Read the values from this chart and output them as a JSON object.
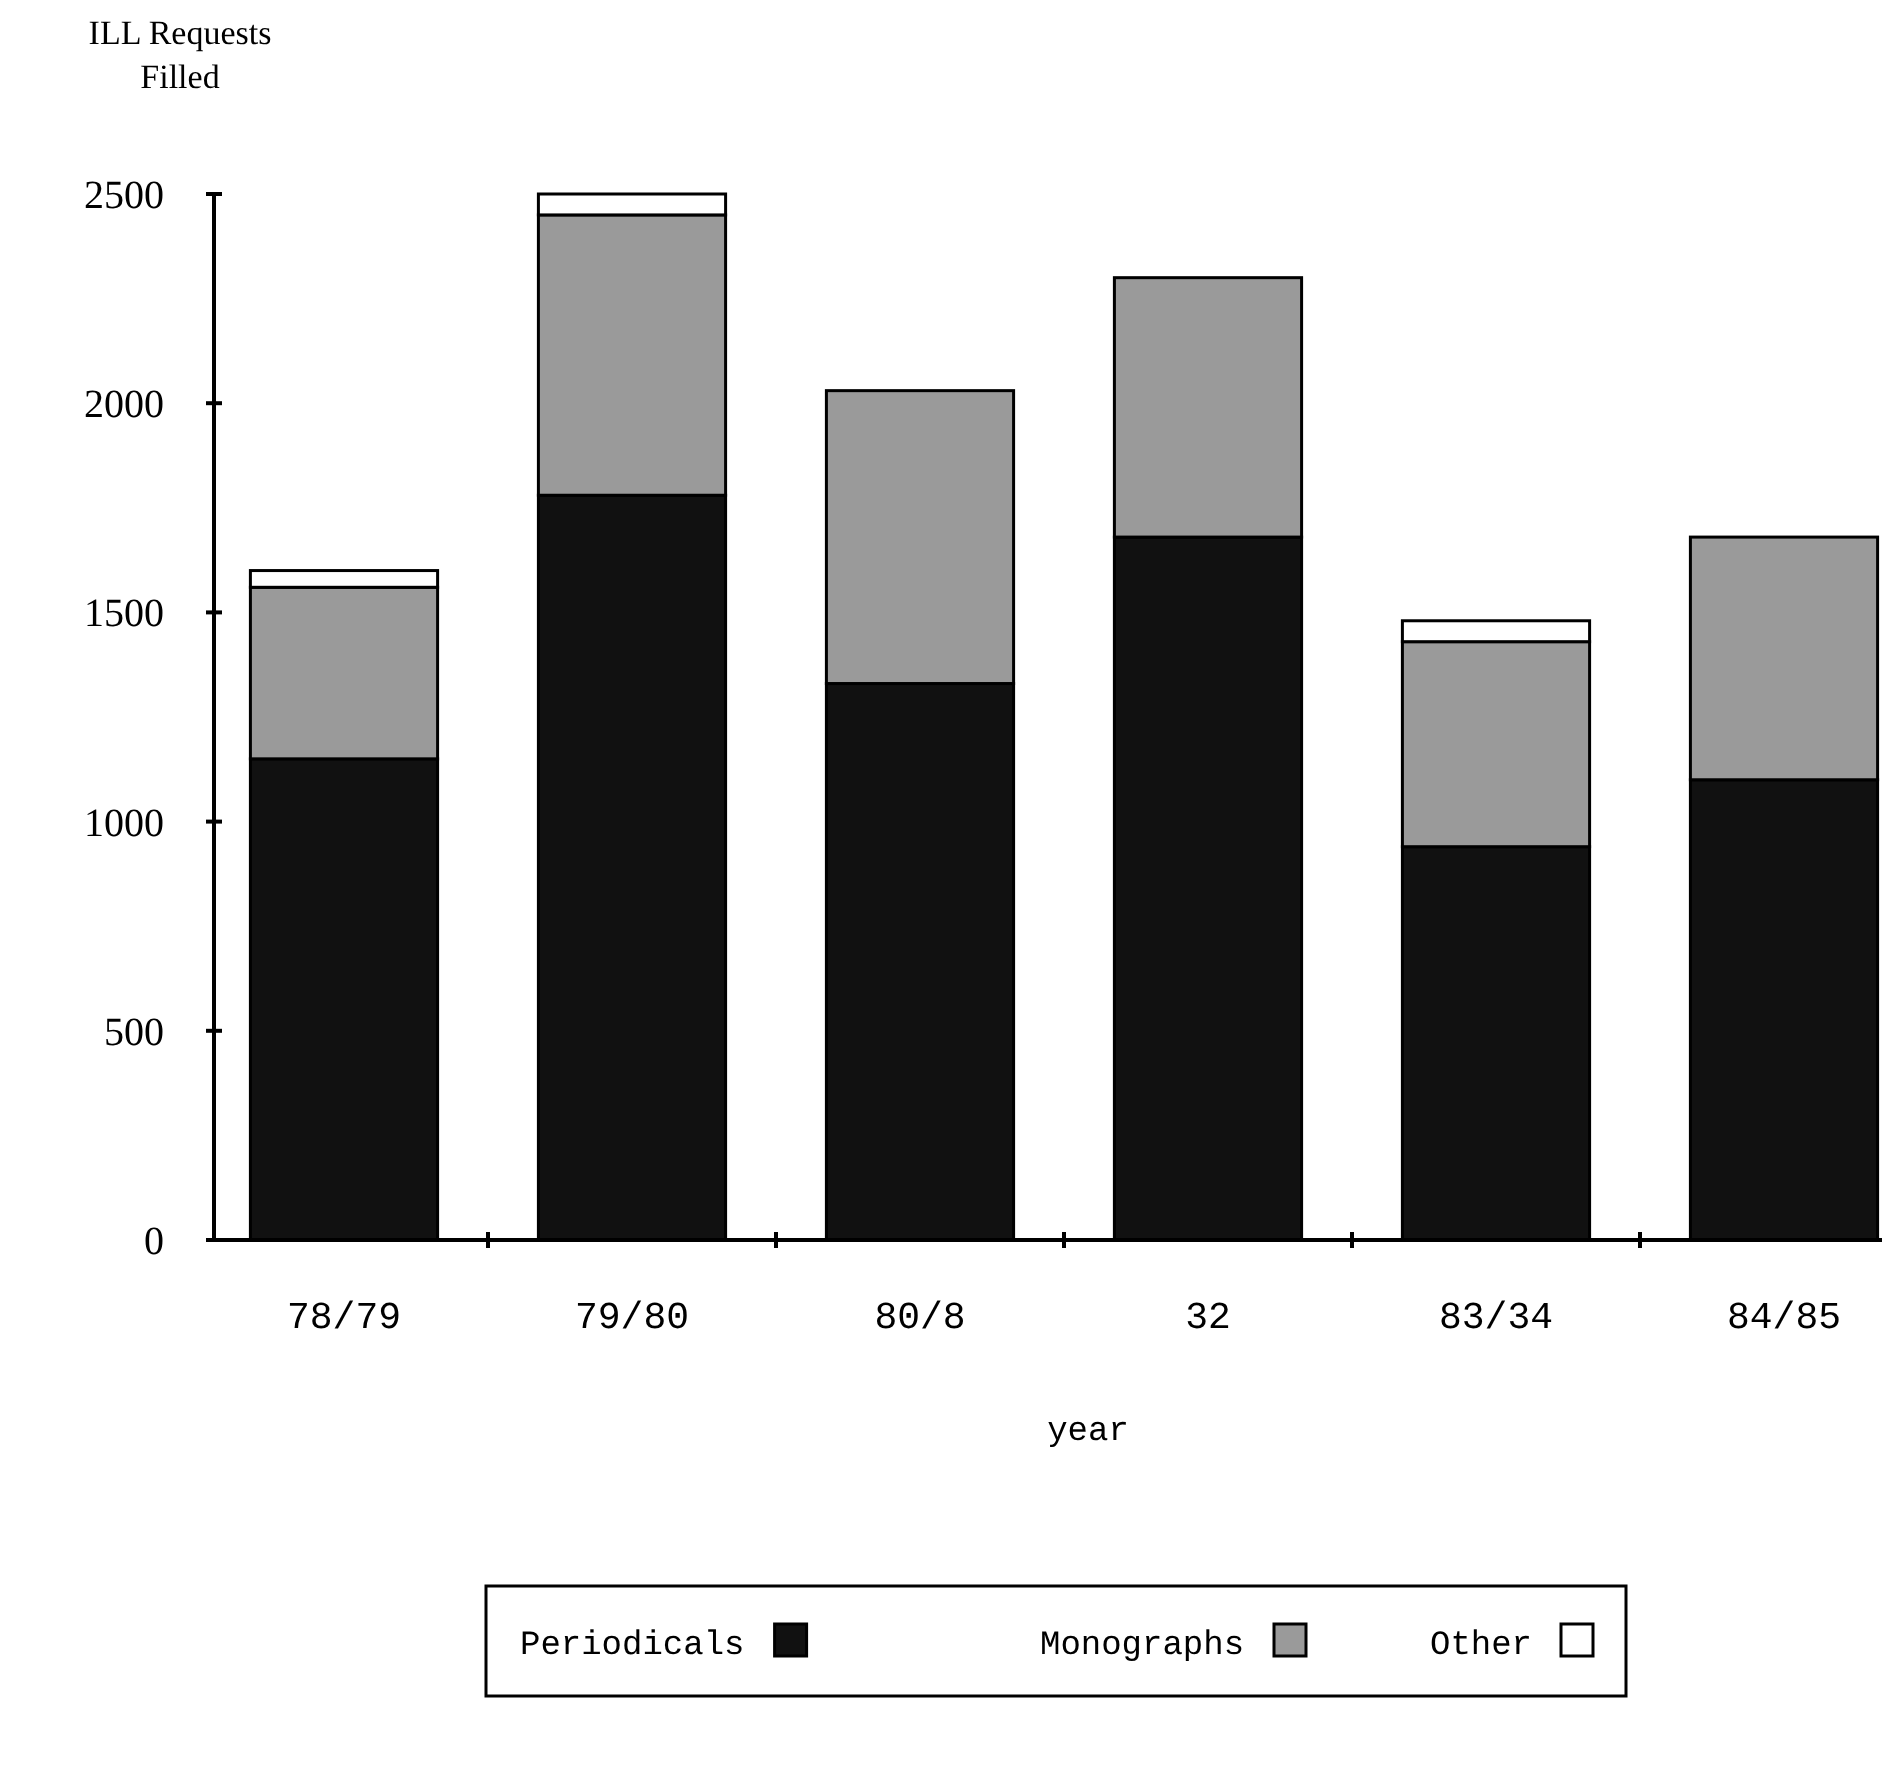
{
  "chart_data": {
    "type": "bar",
    "stacked": true,
    "ylabel": "ILL Requests Filled",
    "xlabel": "year",
    "categories": [
      "78/79",
      "79/80",
      "80/8",
      "32",
      "83/34",
      "84/85"
    ],
    "series": [
      {
        "name": "Periodicals",
        "color": "#111111",
        "values": [
          1150,
          1780,
          1330,
          1680,
          940,
          1100
        ]
      },
      {
        "name": "Monographs",
        "color": "#9a9a9a",
        "values": [
          410,
          670,
          700,
          620,
          490,
          580
        ]
      },
      {
        "name": "Other",
        "color": "#ffffff",
        "values": [
          40,
          50,
          0,
          0,
          50,
          0
        ]
      }
    ],
    "ylim": [
      0,
      2500
    ],
    "yticks": [
      0,
      500,
      1000,
      1500,
      2000,
      2500
    ],
    "grid": false,
    "legend": "bottom"
  }
}
